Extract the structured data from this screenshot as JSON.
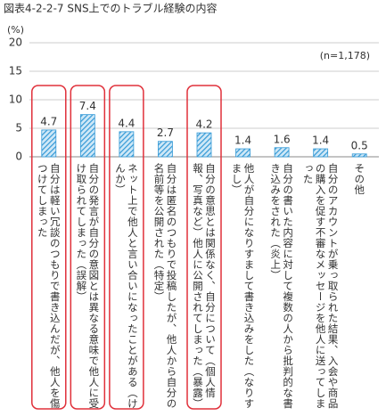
{
  "chart_data": {
    "type": "bar",
    "title": "図表4-2-2-7 SNS上でのトラブル経験の内容",
    "y_label": "(%)",
    "note": "(n=1,178)",
    "categories": [
      "自分は軽い冗談のつもりで書き込んだが、他人を傷つけてしまった",
      "自分の発言が自分の意図とは異なる意味で他人に受け取られてしまった（誤解）",
      "ネット上で他人と言い合いになったことがある（けんか）",
      "自分は匿名のつもりで投稿したが、他人から自分の名前等を公開された（特定）",
      "自分の意思とは関係なく、自分について（個人情報、写真など）他人に公開されてしまった（暴露）",
      "他人が自分になりすまして書き込みをした（なりすまし）",
      "自分の書いた内容に対して複数の人から批判的な書き込みをされた（炎上）",
      "自分のアカウントが乗っ取られた結果、入会や商品の購入を促す不審なメッセージを他人に送ってしまった",
      "その他"
    ],
    "values": [
      4.7,
      7.4,
      4.4,
      2.7,
      4.2,
      1.4,
      1.6,
      1.4,
      0.5
    ],
    "color": "#3399d6",
    "highlighted": [
      true,
      true,
      true,
      false,
      true,
      false,
      false,
      false,
      false
    ],
    "highlight_color": "#e0303a",
    "ylim": [
      0,
      20
    ],
    "yticks": [
      0,
      5,
      10,
      15,
      20
    ],
    "grid": true
  }
}
